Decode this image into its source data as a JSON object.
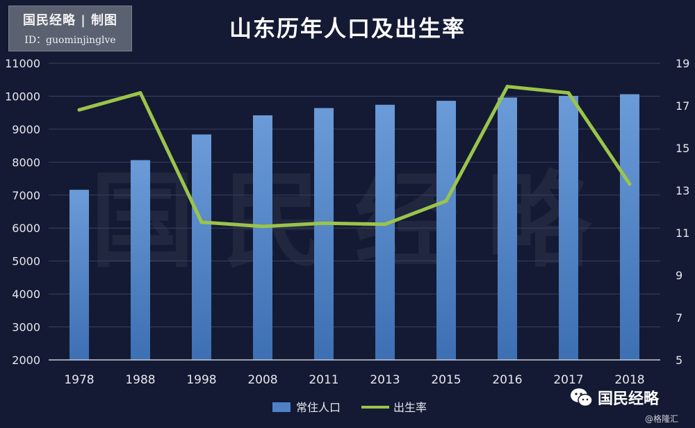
{
  "brand": {
    "line1": "国民经略 | 制图",
    "line2": "ID：guominjinglve",
    "footer_name": "国民经略",
    "credit": "@格隆汇"
  },
  "watermark": "国民经略",
  "chart_data": {
    "type": "bar",
    "title": "山东历年人口及出生率",
    "categories": [
      "1978",
      "1988",
      "1998",
      "2008",
      "2011",
      "2013",
      "2015",
      "2016",
      "2017",
      "2018"
    ],
    "series": [
      {
        "name": "常住人口",
        "kind": "bar",
        "axis": "left",
        "color": "#4f81c7",
        "values": [
          7160,
          8060,
          8840,
          9420,
          9640,
          9740,
          9860,
          9960,
          10010,
          10060
        ]
      },
      {
        "name": "出生率",
        "kind": "line",
        "axis": "right",
        "color": "#9bc44a",
        "values": [
          16.8,
          17.6,
          11.5,
          11.3,
          11.45,
          11.4,
          12.5,
          17.9,
          17.6,
          13.3
        ]
      }
    ],
    "y_left": {
      "min": 2000,
      "max": 11000,
      "ticks": [
        2000,
        3000,
        4000,
        5000,
        6000,
        7000,
        8000,
        9000,
        10000,
        11000
      ]
    },
    "y_right": {
      "min": 5,
      "max": 19,
      "ticks": [
        5,
        7,
        9,
        11,
        13,
        15,
        17,
        19
      ]
    },
    "grid": true,
    "legend_position": "bottom"
  }
}
